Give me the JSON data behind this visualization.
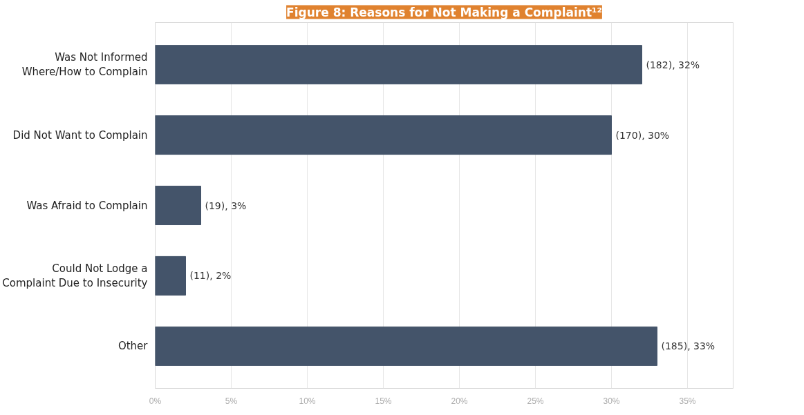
{
  "chart_data": {
    "type": "bar",
    "orientation": "horizontal",
    "title": "Figure 8: Reasons for Not Making a Complaint¹²",
    "categories": [
      "Was Not Informed\nWhere/How to Complain",
      "Did Not Want to Complain",
      "Was Afraid to Complain",
      "Could Not Lodge a\nComplaint Due to Insecurity",
      "Other"
    ],
    "values": [
      32,
      30,
      3,
      2,
      33
    ],
    "value_labels": [
      "(182), 32%",
      "(170), 30%",
      "(19), 3%",
      "(11), 2%",
      "(185), 33%"
    ],
    "color": "#44546a",
    "xlim": [
      0,
      38
    ],
    "xticks": [
      {
        "value": 0,
        "label": "0%"
      },
      {
        "value": 5,
        "label": "5%"
      },
      {
        "value": 10,
        "label": "10%"
      },
      {
        "value": 15,
        "label": "15%"
      },
      {
        "value": 20,
        "label": "20%"
      },
      {
        "value": 25,
        "label": "25%"
      },
      {
        "value": 30,
        "label": "30%"
      },
      {
        "value": 35,
        "label": "35%"
      }
    ],
    "grid": "x"
  }
}
